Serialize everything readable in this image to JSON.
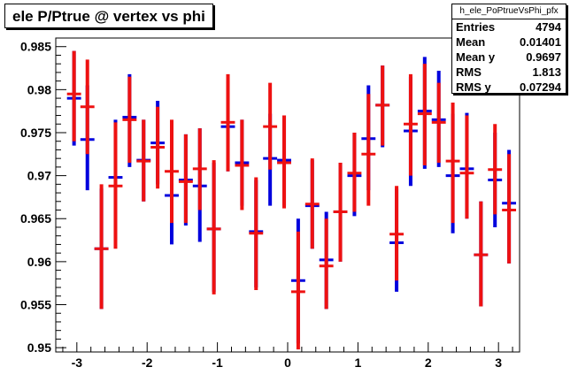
{
  "title": "ele P/Ptrue @ vertex vs phi",
  "stats": {
    "name": "h_ele_PoPtrueVsPhi_pfx",
    "rows": [
      {
        "label": "Entries",
        "value": "4794"
      },
      {
        "label": "Mean",
        "value": "0.01401"
      },
      {
        "label": "Mean y",
        "value": "0.9697"
      },
      {
        "label": "RMS",
        "value": "1.813"
      },
      {
        "label": "RMS y",
        "value": "0.07294"
      }
    ]
  },
  "colors": {
    "blue": "#0000dd",
    "red": "#ee1111",
    "axis": "#000000"
  },
  "chart_data": {
    "type": "scatter",
    "title": "ele P/Ptrue @ vertex vs phi",
    "xlim": [
      -3.3,
      3.3
    ],
    "ylim": [
      0.9495,
      0.986
    ],
    "xticks": [
      -3,
      -2,
      -1,
      0,
      1,
      2,
      3
    ],
    "yticks": [
      0.95,
      0.955,
      0.96,
      0.965,
      0.97,
      0.975,
      0.98,
      0.985
    ],
    "xtick_labels": [
      "-3",
      "-2",
      "-1",
      "0",
      "1",
      "2",
      "3"
    ],
    "ytick_labels": [
      "0.95",
      "0.955",
      "0.96",
      "0.965",
      "0.97",
      "0.975",
      "0.98",
      "0.985"
    ],
    "bin_half_width": 0.1,
    "series": [
      {
        "color": "blue",
        "points": [
          {
            "x": -3.04,
            "y": 0.979,
            "lo": 0.9735,
            "hi": 0.9845
          },
          {
            "x": -2.85,
            "y": 0.9742,
            "lo": 0.9683,
            "hi": 0.9805
          },
          {
            "x": -2.65,
            "y": 0.9615,
            "lo": 0.9545,
            "hi": 0.9685
          },
          {
            "x": -2.45,
            "y": 0.9698,
            "lo": 0.9625,
            "hi": 0.9765
          },
          {
            "x": -2.25,
            "y": 0.9768,
            "lo": 0.971,
            "hi": 0.9818
          },
          {
            "x": -2.05,
            "y": 0.9718,
            "lo": 0.967,
            "hi": 0.9765
          },
          {
            "x": -1.85,
            "y": 0.9738,
            "lo": 0.969,
            "hi": 0.9787
          },
          {
            "x": -1.65,
            "y": 0.9677,
            "lo": 0.962,
            "hi": 0.974
          },
          {
            "x": -1.45,
            "y": 0.9695,
            "lo": 0.9642,
            "hi": 0.9748
          },
          {
            "x": -1.25,
            "y": 0.9688,
            "lo": 0.9623,
            "hi": 0.9755
          },
          {
            "x": -1.05,
            "y": 0.9638,
            "lo": 0.9565,
            "hi": 0.9715
          },
          {
            "x": -0.85,
            "y": 0.9757,
            "lo": 0.9705,
            "hi": 0.981
          },
          {
            "x": -0.65,
            "y": 0.9715,
            "lo": 0.9665,
            "hi": 0.9765
          },
          {
            "x": -0.45,
            "y": 0.9635,
            "lo": 0.957,
            "hi": 0.9695
          },
          {
            "x": -0.25,
            "y": 0.972,
            "lo": 0.9665,
            "hi": 0.9772
          },
          {
            "x": -0.05,
            "y": 0.9718,
            "lo": 0.9665,
            "hi": 0.977
          },
          {
            "x": 0.15,
            "y": 0.9578,
            "lo": 0.9505,
            "hi": 0.965
          },
          {
            "x": 0.35,
            "y": 0.9665,
            "lo": 0.9615,
            "hi": 0.9718
          },
          {
            "x": 0.55,
            "y": 0.9602,
            "lo": 0.9545,
            "hi": 0.9658
          },
          {
            "x": 0.75,
            "y": 0.9658,
            "lo": 0.96,
            "hi": 0.9715
          },
          {
            "x": 0.95,
            "y": 0.97,
            "lo": 0.9653,
            "hi": 0.975
          },
          {
            "x": 1.15,
            "y": 0.9743,
            "lo": 0.9683,
            "hi": 0.9805
          },
          {
            "x": 1.35,
            "y": 0.9782,
            "lo": 0.9733,
            "hi": 0.9828
          },
          {
            "x": 1.55,
            "y": 0.9622,
            "lo": 0.9565,
            "hi": 0.9685
          },
          {
            "x": 1.75,
            "y": 0.9752,
            "lo": 0.9688,
            "hi": 0.9815
          },
          {
            "x": 1.95,
            "y": 0.9775,
            "lo": 0.9708,
            "hi": 0.9838
          },
          {
            "x": 2.15,
            "y": 0.9765,
            "lo": 0.971,
            "hi": 0.9822
          },
          {
            "x": 2.35,
            "y": 0.97,
            "lo": 0.9633,
            "hi": 0.9772
          },
          {
            "x": 2.55,
            "y": 0.9708,
            "lo": 0.965,
            "hi": 0.9773
          },
          {
            "x": 2.75,
            "y": 0.9608,
            "lo": 0.9548,
            "hi": 0.967
          },
          {
            "x": 2.95,
            "y": 0.9695,
            "lo": 0.964,
            "hi": 0.975
          },
          {
            "x": 3.15,
            "y": 0.9668,
            "lo": 0.9598,
            "hi": 0.973
          }
        ]
      },
      {
        "color": "red",
        "points": [
          {
            "x": -3.04,
            "y": 0.9795,
            "lo": 0.974,
            "hi": 0.9845
          },
          {
            "x": -2.85,
            "y": 0.978,
            "lo": 0.9725,
            "hi": 0.9835
          },
          {
            "x": -2.65,
            "y": 0.9615,
            "lo": 0.9545,
            "hi": 0.969
          },
          {
            "x": -2.45,
            "y": 0.9688,
            "lo": 0.9615,
            "hi": 0.9762
          },
          {
            "x": -2.25,
            "y": 0.9765,
            "lo": 0.9715,
            "hi": 0.9815
          },
          {
            "x": -2.05,
            "y": 0.9717,
            "lo": 0.967,
            "hi": 0.9765
          },
          {
            "x": -1.85,
            "y": 0.9733,
            "lo": 0.9685,
            "hi": 0.978
          },
          {
            "x": -1.65,
            "y": 0.9705,
            "lo": 0.9645,
            "hi": 0.9765
          },
          {
            "x": -1.45,
            "y": 0.9693,
            "lo": 0.9645,
            "hi": 0.9748
          },
          {
            "x": -1.25,
            "y": 0.9708,
            "lo": 0.966,
            "hi": 0.9755
          },
          {
            "x": -1.05,
            "y": 0.9638,
            "lo": 0.9562,
            "hi": 0.9718
          },
          {
            "x": -0.85,
            "y": 0.9762,
            "lo": 0.9705,
            "hi": 0.9818
          },
          {
            "x": -0.65,
            "y": 0.9712,
            "lo": 0.966,
            "hi": 0.9765
          },
          {
            "x": -0.45,
            "y": 0.9633,
            "lo": 0.9567,
            "hi": 0.9698
          },
          {
            "x": -0.25,
            "y": 0.9757,
            "lo": 0.9707,
            "hi": 0.9808
          },
          {
            "x": -0.05,
            "y": 0.9715,
            "lo": 0.9662,
            "hi": 0.977
          },
          {
            "x": 0.15,
            "y": 0.9565,
            "lo": 0.9498,
            "hi": 0.9635
          },
          {
            "x": 0.35,
            "y": 0.9667,
            "lo": 0.9615,
            "hi": 0.972
          },
          {
            "x": 0.55,
            "y": 0.9595,
            "lo": 0.9545,
            "hi": 0.965
          },
          {
            "x": 0.75,
            "y": 0.9658,
            "lo": 0.96,
            "hi": 0.9715
          },
          {
            "x": 0.95,
            "y": 0.9703,
            "lo": 0.9658,
            "hi": 0.975
          },
          {
            "x": 1.15,
            "y": 0.9725,
            "lo": 0.9665,
            "hi": 0.9795
          },
          {
            "x": 1.35,
            "y": 0.9782,
            "lo": 0.9735,
            "hi": 0.9828
          },
          {
            "x": 1.55,
            "y": 0.9632,
            "lo": 0.9578,
            "hi": 0.9688
          },
          {
            "x": 1.75,
            "y": 0.976,
            "lo": 0.97,
            "hi": 0.9818
          },
          {
            "x": 1.95,
            "y": 0.9772,
            "lo": 0.9712,
            "hi": 0.983
          },
          {
            "x": 2.15,
            "y": 0.9762,
            "lo": 0.9715,
            "hi": 0.9808
          },
          {
            "x": 2.35,
            "y": 0.9717,
            "lo": 0.9645,
            "hi": 0.9785
          },
          {
            "x": 2.55,
            "y": 0.9703,
            "lo": 0.965,
            "hi": 0.977
          },
          {
            "x": 2.75,
            "y": 0.9608,
            "lo": 0.9548,
            "hi": 0.967
          },
          {
            "x": 2.95,
            "y": 0.9707,
            "lo": 0.9655,
            "hi": 0.976
          },
          {
            "x": 3.15,
            "y": 0.966,
            "lo": 0.9598,
            "hi": 0.9725
          }
        ]
      }
    ]
  }
}
